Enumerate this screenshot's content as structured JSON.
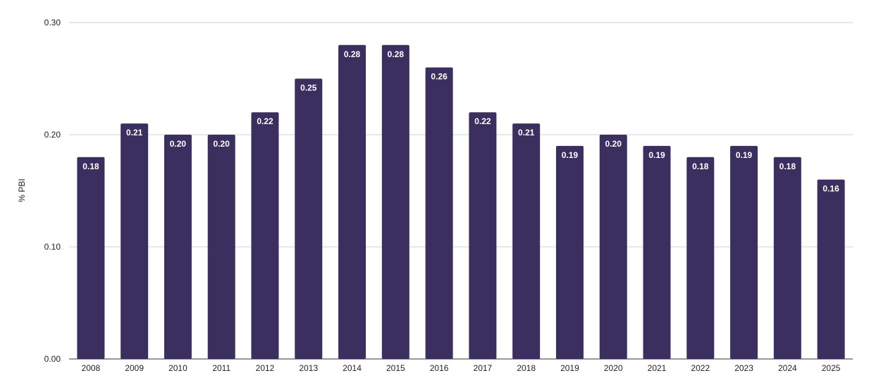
{
  "chart_data": {
    "type": "bar",
    "title": "",
    "xlabel": "",
    "ylabel": "% PBI",
    "ylim": [
      0,
      0.3
    ],
    "yticks": [
      "0.00",
      "0.10",
      "0.20",
      "0.30"
    ],
    "ytick_values": [
      0,
      0.1,
      0.2,
      0.3
    ],
    "grid": true,
    "legend": "none",
    "bar_color": "#3a2f5f",
    "categories": [
      "2008",
      "2009",
      "2010",
      "2011",
      "2012",
      "2013",
      "2014",
      "2015",
      "2016",
      "2017",
      "2018",
      "2019",
      "2020",
      "2021",
      "2022",
      "2023",
      "2024",
      "2025"
    ],
    "values": [
      0.18,
      0.21,
      0.2,
      0.2,
      0.22,
      0.25,
      0.28,
      0.28,
      0.26,
      0.22,
      0.21,
      0.19,
      0.2,
      0.19,
      0.18,
      0.19,
      0.18,
      0.16
    ],
    "value_labels": [
      "0.18",
      "0.21",
      "0.20",
      "0.20",
      "0.22",
      "0.25",
      "0.28",
      "0.28",
      "0.26",
      "0.22",
      "0.21",
      "0.19",
      "0.20",
      "0.19",
      "0.18",
      "0.19",
      "0.18",
      "0.16"
    ]
  }
}
